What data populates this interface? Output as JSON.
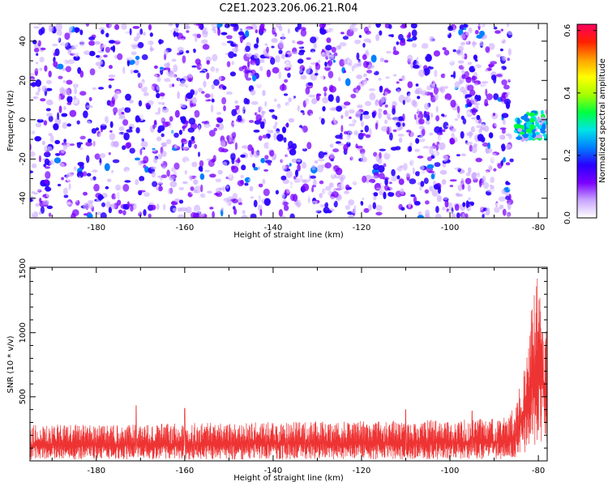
{
  "title": "C2E1.2023.206.06.21.R04",
  "chart_data": [
    {
      "type": "heatmap",
      "xlabel": "Height of straight line (km)",
      "ylabel": "Frequency (Hz)",
      "xlim": [
        -195,
        -78
      ],
      "ylim": [
        -50,
        49
      ],
      "x_ticks": [
        -180,
        -160,
        -140,
        -120,
        -100,
        -80
      ],
      "y_ticks": [
        -40,
        -20,
        0,
        20,
        40
      ],
      "colorbar": {
        "label": "Normalized spectral amplitude",
        "range": [
          0.0,
          0.62
        ],
        "ticks": [
          "0.0",
          "0.2",
          "0.4",
          "0.6"
        ],
        "colors": [
          "#ffffff",
          "#c9a6ff",
          "#7a00ff",
          "#2a00ff",
          "#0080ff",
          "#00e5e5",
          "#00ff40",
          "#a6ff00",
          "#ffff00",
          "#ffa000",
          "#ff2000",
          "#ff0060"
        ]
      },
      "noise_floor_amplitude": [
        0.0,
        0.2
      ],
      "noise_x_range": [
        -195,
        -86
      ],
      "signal_region": {
        "x": [
          -85,
          -78
        ],
        "y": [
          -10,
          4
        ],
        "amplitude": [
          0.2,
          0.35
        ]
      },
      "grid": false
    },
    {
      "type": "line",
      "xlabel": "Height of straight line (km)",
      "ylabel": "SNR (10 * v/v)",
      "xlim": [
        -195,
        -78
      ],
      "ylim": [
        0,
        1510
      ],
      "x_ticks": [
        -180,
        -160,
        -140,
        -120,
        -100,
        -80
      ],
      "y_ticks": [
        500,
        1000,
        1500
      ],
      "series": [
        {
          "color": "#ee3333",
          "profile": [
            {
              "x": -195,
              "low": 10,
              "high": 280
            },
            {
              "x": -150,
              "low": 10,
              "high": 300
            },
            {
              "x": -100,
              "low": 10,
              "high": 320
            },
            {
              "x": -87,
              "low": 15,
              "high": 340
            },
            {
              "x": -85,
              "low": 30,
              "high": 450
            },
            {
              "x": -83,
              "low": 60,
              "high": 800
            },
            {
              "x": -81,
              "low": 100,
              "high": 1400
            },
            {
              "x": -79.5,
              "low": 120,
              "high": 1500
            },
            {
              "x": -78,
              "low": 100,
              "high": 1000
            }
          ],
          "spikes": [
            {
              "x": -171,
              "y": 430
            },
            {
              "x": -160,
              "y": 410
            },
            {
              "x": -110,
              "y": 400
            },
            {
              "x": -95,
              "y": 390
            }
          ]
        }
      ],
      "grid": false
    }
  ]
}
